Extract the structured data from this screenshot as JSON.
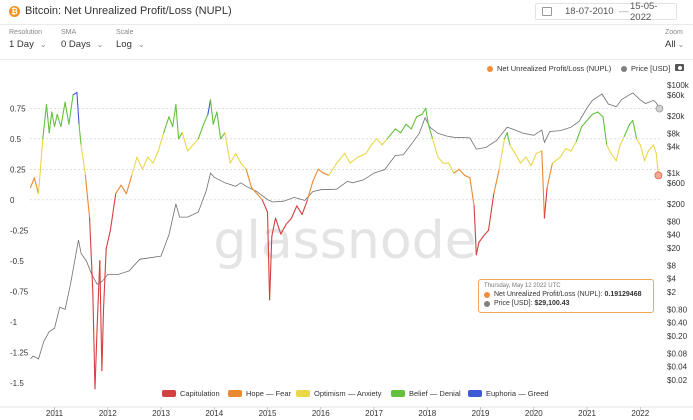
{
  "header": {
    "logo_glyph": "₿",
    "title": "Bitcoin: Net Unrealized Profit/Loss (NUPL)",
    "date_from": "18-07-2010",
    "date_to": "15-05-2022",
    "date_sep": "—",
    "calendar_icon": "calendar-icon"
  },
  "controls": {
    "resolution": {
      "label": "Resolution",
      "value": "1 Day"
    },
    "sma": {
      "label": "SMA",
      "value": "0 Days"
    },
    "scale": {
      "label": "Scale",
      "value": "Log"
    },
    "zoom": {
      "label": "Zoom",
      "value": "All"
    }
  },
  "watermark": "glassnode",
  "tooltip": {
    "date": "Thursday, May 12 2022 UTC",
    "nupl_label": "Net Unrealized Profit/Loss (NUPL):",
    "nupl_value": "0.19129468",
    "price_label": "Price [USD]:",
    "price_value": "$29,100.43"
  },
  "chart_data": {
    "type": "line",
    "title": "Bitcoin: Net Unrealized Profit/Loss (NUPL)",
    "legend_top": [
      {
        "name": "Net Unrealized Profit/Loss (NUPL)",
        "color": "#f28d3c"
      },
      {
        "name": "Price [USD]",
        "color": "#808080"
      }
    ],
    "zones": [
      {
        "name": "Capitulation",
        "color": "#d53f3f",
        "range": [
          -1.6,
          0
        ]
      },
      {
        "name": "Hope — Fear",
        "color": "#ea8a30",
        "range": [
          0,
          0.25
        ]
      },
      {
        "name": "Optimism — Anxiety",
        "color": "#ead74b",
        "range": [
          0.25,
          0.5
        ]
      },
      {
        "name": "Belief — Denial",
        "color": "#63c13f",
        "range": [
          0.5,
          0.75
        ]
      },
      {
        "name": "Euphoria — Greed",
        "color": "#3e59d6",
        "range": [
          0.75,
          1
        ]
      }
    ],
    "left_axis": {
      "ticks": [
        0.75,
        0.5,
        0.25,
        0,
        -0.25,
        -0.5,
        -0.75,
        -1,
        -1.25,
        -1.5
      ],
      "labels": [
        "0.75",
        "0.5",
        "0.25",
        "0",
        "-0.25",
        "-0.5",
        "-0.75",
        "-1",
        "-1.25",
        "-1.5"
      ],
      "range": [
        -1.6,
        0.9
      ]
    },
    "right_axis": {
      "scale": "log",
      "labels": [
        "$100k",
        "$60k",
        "$20k",
        "$8k",
        "$4k",
        "$1k",
        "$600",
        "$200",
        "$80",
        "$40",
        "$20",
        "$8",
        "$4",
        "$2",
        "$0.80",
        "$0.40",
        "$0.20",
        "$0.08",
        "$0.04",
        "$0.02"
      ],
      "ticks": [
        100000,
        60000,
        20000,
        8000,
        4000,
        1000,
        600,
        200,
        80,
        40,
        20,
        8,
        4,
        2,
        0.8,
        0.4,
        0.2,
        0.08,
        0.04,
        0.02
      ]
    },
    "x_labels": [
      "2011",
      "2012",
      "2013",
      "2014",
      "2015",
      "2016",
      "2017",
      "2018",
      "2019",
      "2020",
      "2021",
      "2022"
    ],
    "x_ticks": [
      2011,
      2012,
      2013,
      2014,
      2015,
      2016,
      2017,
      2018,
      2019,
      2020,
      2021,
      2022
    ],
    "x_range": [
      2010.54,
      2022.37
    ],
    "reference_lines": [
      0.75,
      0.5,
      0.25,
      0
    ],
    "nupl": [
      [
        2010.55,
        0.1
      ],
      [
        2010.62,
        0.18
      ],
      [
        2010.7,
        0.05
      ],
      [
        2010.78,
        0.5
      ],
      [
        2010.85,
        0.78
      ],
      [
        2010.9,
        0.55
      ],
      [
        2010.95,
        0.72
      ],
      [
        2011.0,
        0.6
      ],
      [
        2011.05,
        0.7
      ],
      [
        2011.12,
        0.6
      ],
      [
        2011.2,
        0.8
      ],
      [
        2011.27,
        0.62
      ],
      [
        2011.35,
        0.86
      ],
      [
        2011.42,
        0.88
      ],
      [
        2011.46,
        0.62
      ],
      [
        2011.5,
        0.45
      ],
      [
        2011.58,
        0.2
      ],
      [
        2011.66,
        -0.15
      ],
      [
        2011.72,
        -0.75
      ],
      [
        2011.76,
        -1.55
      ],
      [
        2011.8,
        -1.05
      ],
      [
        2011.85,
        -0.5
      ],
      [
        2011.89,
        -1.4
      ],
      [
        2011.92,
        -0.9
      ],
      [
        2011.97,
        -0.4
      ],
      [
        2012.05,
        -0.25
      ],
      [
        2012.15,
        0.05
      ],
      [
        2012.25,
        0.12
      ],
      [
        2012.35,
        0.05
      ],
      [
        2012.45,
        0.2
      ],
      [
        2012.55,
        0.35
      ],
      [
        2012.65,
        0.25
      ],
      [
        2012.75,
        0.35
      ],
      [
        2012.85,
        0.3
      ],
      [
        2012.95,
        0.4
      ],
      [
        2013.05,
        0.55
      ],
      [
        2013.15,
        0.68
      ],
      [
        2013.22,
        0.6
      ],
      [
        2013.28,
        0.78
      ],
      [
        2013.33,
        0.5
      ],
      [
        2013.4,
        0.55
      ],
      [
        2013.5,
        0.4
      ],
      [
        2013.6,
        0.45
      ],
      [
        2013.7,
        0.5
      ],
      [
        2013.8,
        0.62
      ],
      [
        2013.88,
        0.7
      ],
      [
        2013.93,
        0.82
      ],
      [
        2013.98,
        0.62
      ],
      [
        2014.05,
        0.72
      ],
      [
        2014.12,
        0.5
      ],
      [
        2014.2,
        0.55
      ],
      [
        2014.3,
        0.3
      ],
      [
        2014.4,
        0.38
      ],
      [
        2014.5,
        0.3
      ],
      [
        2014.6,
        0.25
      ],
      [
        2014.7,
        0.1
      ],
      [
        2014.8,
        0.05
      ],
      [
        2014.9,
        0.0
      ],
      [
        2015.0,
        -0.1
      ],
      [
        2015.04,
        -0.82
      ],
      [
        2015.08,
        -0.3
      ],
      [
        2015.15,
        -0.15
      ],
      [
        2015.25,
        -0.28
      ],
      [
        2015.35,
        -0.2
      ],
      [
        2015.45,
        -0.15
      ],
      [
        2015.55,
        -0.05
      ],
      [
        2015.65,
        -0.12
      ],
      [
        2015.75,
        0.0
      ],
      [
        2015.85,
        0.15
      ],
      [
        2015.95,
        0.25
      ],
      [
        2016.05,
        0.22
      ],
      [
        2016.15,
        0.2
      ],
      [
        2016.3,
        0.3
      ],
      [
        2016.45,
        0.38
      ],
      [
        2016.55,
        0.3
      ],
      [
        2016.7,
        0.35
      ],
      [
        2016.85,
        0.38
      ],
      [
        2016.95,
        0.45
      ],
      [
        2017.05,
        0.5
      ],
      [
        2017.15,
        0.45
      ],
      [
        2017.25,
        0.5
      ],
      [
        2017.4,
        0.58
      ],
      [
        2017.5,
        0.55
      ],
      [
        2017.6,
        0.62
      ],
      [
        2017.7,
        0.58
      ],
      [
        2017.8,
        0.68
      ],
      [
        2017.9,
        0.7
      ],
      [
        2017.97,
        0.75
      ],
      [
        2018.02,
        0.62
      ],
      [
        2018.1,
        0.5
      ],
      [
        2018.2,
        0.35
      ],
      [
        2018.3,
        0.3
      ],
      [
        2018.4,
        0.3
      ],
      [
        2018.5,
        0.22
      ],
      [
        2018.6,
        0.25
      ],
      [
        2018.7,
        0.2
      ],
      [
        2018.8,
        0.18
      ],
      [
        2018.88,
        -0.05
      ],
      [
        2018.92,
        -0.45
      ],
      [
        2018.97,
        -0.35
      ],
      [
        2019.05,
        -0.3
      ],
      [
        2019.15,
        -0.25
      ],
      [
        2019.25,
        0.05
      ],
      [
        2019.35,
        0.25
      ],
      [
        2019.45,
        0.5
      ],
      [
        2019.5,
        0.55
      ],
      [
        2019.55,
        0.45
      ],
      [
        2019.65,
        0.38
      ],
      [
        2019.75,
        0.3
      ],
      [
        2019.85,
        0.35
      ],
      [
        2019.95,
        0.28
      ],
      [
        2020.05,
        0.38
      ],
      [
        2020.15,
        0.4
      ],
      [
        2020.2,
        -0.15
      ],
      [
        2020.25,
        0.1
      ],
      [
        2020.35,
        0.3
      ],
      [
        2020.5,
        0.35
      ],
      [
        2020.6,
        0.42
      ],
      [
        2020.7,
        0.4
      ],
      [
        2020.8,
        0.48
      ],
      [
        2020.9,
        0.6
      ],
      [
        2021.0,
        0.65
      ],
      [
        2021.1,
        0.7
      ],
      [
        2021.2,
        0.72
      ],
      [
        2021.3,
        0.68
      ],
      [
        2021.37,
        0.45
      ],
      [
        2021.45,
        0.38
      ],
      [
        2021.55,
        0.32
      ],
      [
        2021.62,
        0.45
      ],
      [
        2021.7,
        0.52
      ],
      [
        2021.8,
        0.62
      ],
      [
        2021.86,
        0.65
      ],
      [
        2021.93,
        0.5
      ],
      [
        2022.0,
        0.45
      ],
      [
        2022.08,
        0.32
      ],
      [
        2022.15,
        0.4
      ],
      [
        2022.25,
        0.45
      ],
      [
        2022.3,
        0.38
      ],
      [
        2022.34,
        0.2
      ]
    ],
    "price": [
      [
        2010.55,
        0.06
      ],
      [
        2010.6,
        0.07
      ],
      [
        2010.7,
        0.06
      ],
      [
        2010.8,
        0.15
      ],
      [
        2010.9,
        0.25
      ],
      [
        2011.0,
        0.3
      ],
      [
        2011.1,
        0.9
      ],
      [
        2011.2,
        0.8
      ],
      [
        2011.3,
        3
      ],
      [
        2011.4,
        14
      ],
      [
        2011.45,
        30
      ],
      [
        2011.5,
        15
      ],
      [
        2011.6,
        10
      ],
      [
        2011.7,
        5
      ],
      [
        2011.8,
        3
      ],
      [
        2011.9,
        3.5
      ],
      [
        2012.0,
        5
      ],
      [
        2012.2,
        5
      ],
      [
        2012.4,
        6
      ],
      [
        2012.6,
        11
      ],
      [
        2012.8,
        12
      ],
      [
        2013.0,
        13
      ],
      [
        2013.15,
        40
      ],
      [
        2013.28,
        200
      ],
      [
        2013.35,
        100
      ],
      [
        2013.5,
        100
      ],
      [
        2013.7,
        130
      ],
      [
        2013.85,
        400
      ],
      [
        2013.93,
        1000
      ],
      [
        2014.0,
        800
      ],
      [
        2014.2,
        600
      ],
      [
        2014.4,
        500
      ],
      [
        2014.5,
        600
      ],
      [
        2014.6,
        500
      ],
      [
        2014.8,
        380
      ],
      [
        2015.0,
        250
      ],
      [
        2015.1,
        220
      ],
      [
        2015.3,
        230
      ],
      [
        2015.5,
        280
      ],
      [
        2015.7,
        240
      ],
      [
        2015.85,
        380
      ],
      [
        2016.0,
        420
      ],
      [
        2016.3,
        430
      ],
      [
        2016.5,
        650
      ],
      [
        2016.6,
        600
      ],
      [
        2016.8,
        700
      ],
      [
        2017.0,
        1000
      ],
      [
        2017.2,
        1200
      ],
      [
        2017.4,
        2500
      ],
      [
        2017.55,
        2600
      ],
      [
        2017.7,
        4500
      ],
      [
        2017.85,
        8000
      ],
      [
        2017.96,
        18000
      ],
      [
        2018.05,
        11000
      ],
      [
        2018.2,
        8000
      ],
      [
        2018.35,
        7000
      ],
      [
        2018.5,
        6500
      ],
      [
        2018.8,
        6300
      ],
      [
        2018.92,
        3500
      ],
      [
        2019.1,
        3800
      ],
      [
        2019.3,
        5500
      ],
      [
        2019.5,
        11000
      ],
      [
        2019.6,
        10000
      ],
      [
        2019.8,
        8000
      ],
      [
        2020.0,
        7200
      ],
      [
        2020.15,
        9500
      ],
      [
        2020.2,
        5000
      ],
      [
        2020.3,
        8800
      ],
      [
        2020.5,
        9200
      ],
      [
        2020.7,
        11000
      ],
      [
        2020.85,
        15000
      ],
      [
        2021.0,
        30000
      ],
      [
        2021.1,
        45000
      ],
      [
        2021.28,
        62000
      ],
      [
        2021.4,
        37000
      ],
      [
        2021.55,
        32000
      ],
      [
        2021.65,
        47000
      ],
      [
        2021.8,
        60000
      ],
      [
        2021.86,
        66000
      ],
      [
        2022.0,
        46000
      ],
      [
        2022.1,
        38000
      ],
      [
        2022.25,
        45000
      ],
      [
        2022.3,
        39000
      ],
      [
        2022.36,
        29100
      ]
    ]
  }
}
